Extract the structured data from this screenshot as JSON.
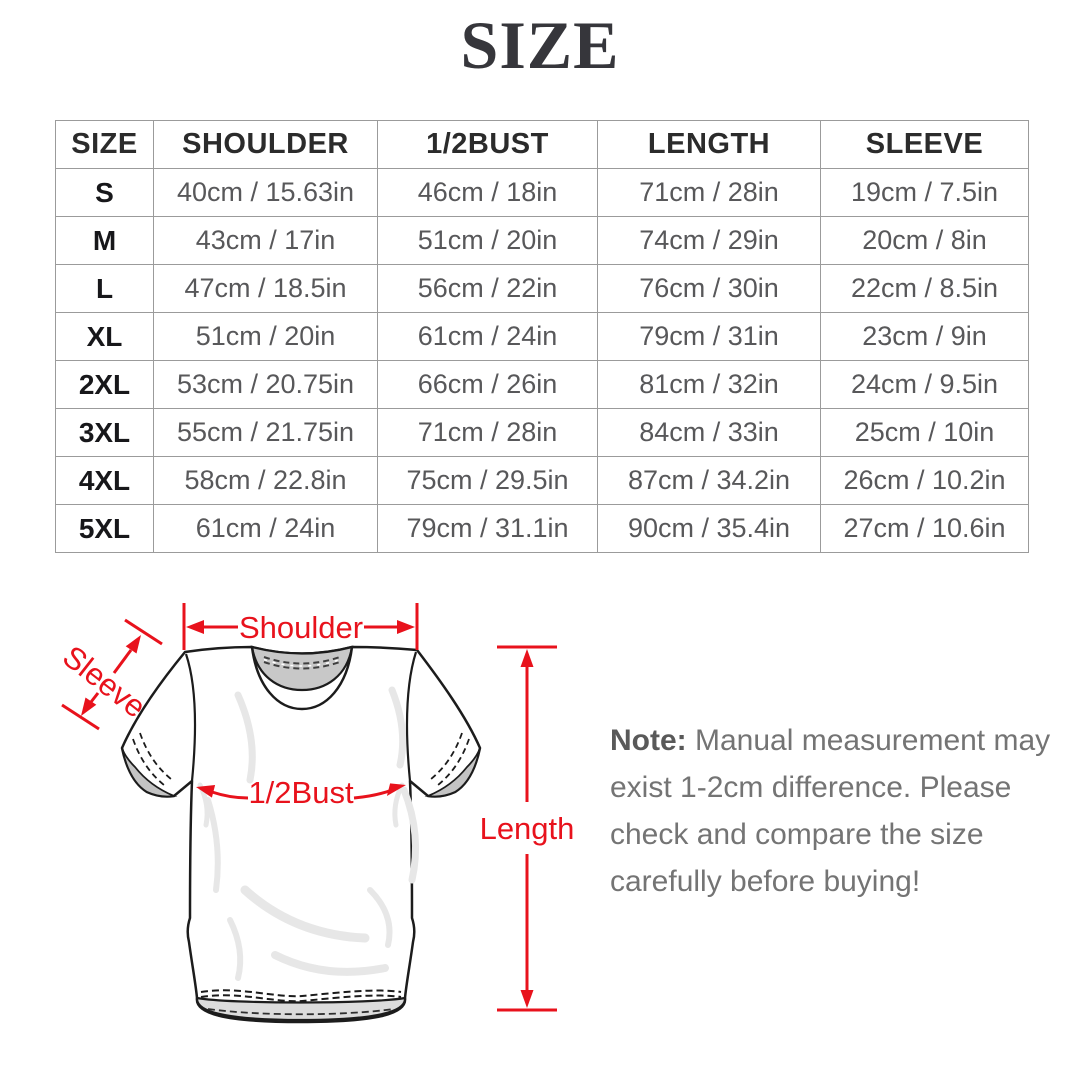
{
  "title": "SIZE",
  "colors": {
    "accent_red": "#e8121c",
    "table_border": "#9b9b9b",
    "header_text": "#2b2b2b",
    "cell_text": "#58585a",
    "note_text": "#747474",
    "collar_gray": "#c8c8c8",
    "outline_black": "#1c1c1c"
  },
  "table": {
    "headers": [
      "SIZE",
      "SHOULDER",
      "1/2BUST",
      "LENGTH",
      "SLEEVE"
    ],
    "rows": [
      [
        "S",
        "40cm / 15.63in",
        "46cm / 18in",
        "71cm / 28in",
        "19cm / 7.5in"
      ],
      [
        "M",
        "43cm / 17in",
        "51cm / 20in",
        "74cm / 29in",
        "20cm / 8in"
      ],
      [
        "L",
        "47cm / 18.5in",
        "56cm / 22in",
        "76cm / 30in",
        "22cm / 8.5in"
      ],
      [
        "XL",
        "51cm / 20in",
        "61cm / 24in",
        "79cm / 31in",
        "23cm / 9in"
      ],
      [
        "2XL",
        "53cm / 20.75in",
        "66cm / 26in",
        "81cm / 32in",
        "24cm / 9.5in"
      ],
      [
        "3XL",
        "55cm / 21.75in",
        "71cm / 28in",
        "84cm / 33in",
        "25cm / 10in"
      ],
      [
        "4XL",
        "58cm / 22.8in",
        "75cm / 29.5in",
        "87cm / 34.2in",
        "26cm / 10.2in"
      ],
      [
        "5XL",
        "61cm / 24in",
        "79cm / 31.1in",
        "90cm / 35.4in",
        "27cm / 10.6in"
      ]
    ]
  },
  "diagram": {
    "labels": {
      "shoulder": "Shoulder",
      "sleeve": "Sleeve",
      "bust": "1/2Bust",
      "length": "Length"
    }
  },
  "note": {
    "prefix": "Note:",
    "lines": [
      "Manual measurement may",
      "exist 1-2cm difference. Please",
      "check and compare the size",
      "carefully before buying!"
    ]
  }
}
